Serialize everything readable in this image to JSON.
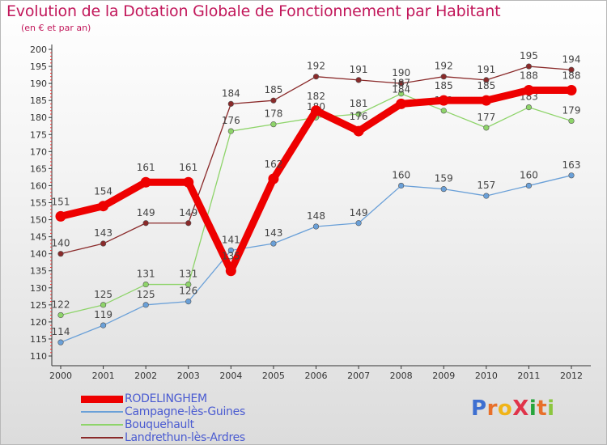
{
  "header": {
    "title": "Evolution de la Dotation Globale de Fonctionnement par Habitant",
    "subtitle": "(en € et par an)"
  },
  "logo": {
    "text": "ProXiti",
    "colors": [
      "#3d6fd1",
      "#e8702a",
      "#f0b418",
      "#e0344a",
      "#27a53c",
      "#e8702a",
      "#8cc63f"
    ]
  },
  "chart_data": {
    "type": "line",
    "title": "Evolution de la Dotation Globale de Fonctionnement par Habitant",
    "subtitle": "(en € et par an)",
    "xlabel": "",
    "ylabel": "",
    "ylim": [
      110,
      200
    ],
    "ytick_step": 5,
    "grid": false,
    "legend_position": "bottom-left",
    "categories": [
      "2000",
      "2001",
      "2002",
      "2003",
      "2004",
      "2005",
      "2006",
      "2007",
      "2008",
      "2009",
      "2010",
      "2011",
      "2012"
    ],
    "series": [
      {
        "name": "Landrethun-lès-Ardres",
        "color": "#8a2a2a",
        "values": [
          140,
          143,
          149,
          149,
          184,
          185,
          192,
          191,
          190,
          192,
          191,
          195,
          194
        ]
      },
      {
        "name": "Bouquehault",
        "color": "#8ed46a",
        "values": [
          122,
          125,
          131,
          131,
          176,
          178,
          180,
          181,
          187,
          182,
          177,
          183,
          179
        ]
      },
      {
        "name": "Campagne-lès-Guines",
        "color": "#6aa0d8",
        "values": [
          114,
          119,
          125,
          126,
          141,
          143,
          148,
          149,
          160,
          159,
          157,
          160,
          163
        ]
      },
      {
        "name": "RODELINGHEM",
        "color": "#ee0000",
        "values": [
          151,
          154,
          161,
          161,
          135,
          162,
          182,
          176,
          184,
          185,
          185,
          188,
          188
        ]
      }
    ]
  }
}
